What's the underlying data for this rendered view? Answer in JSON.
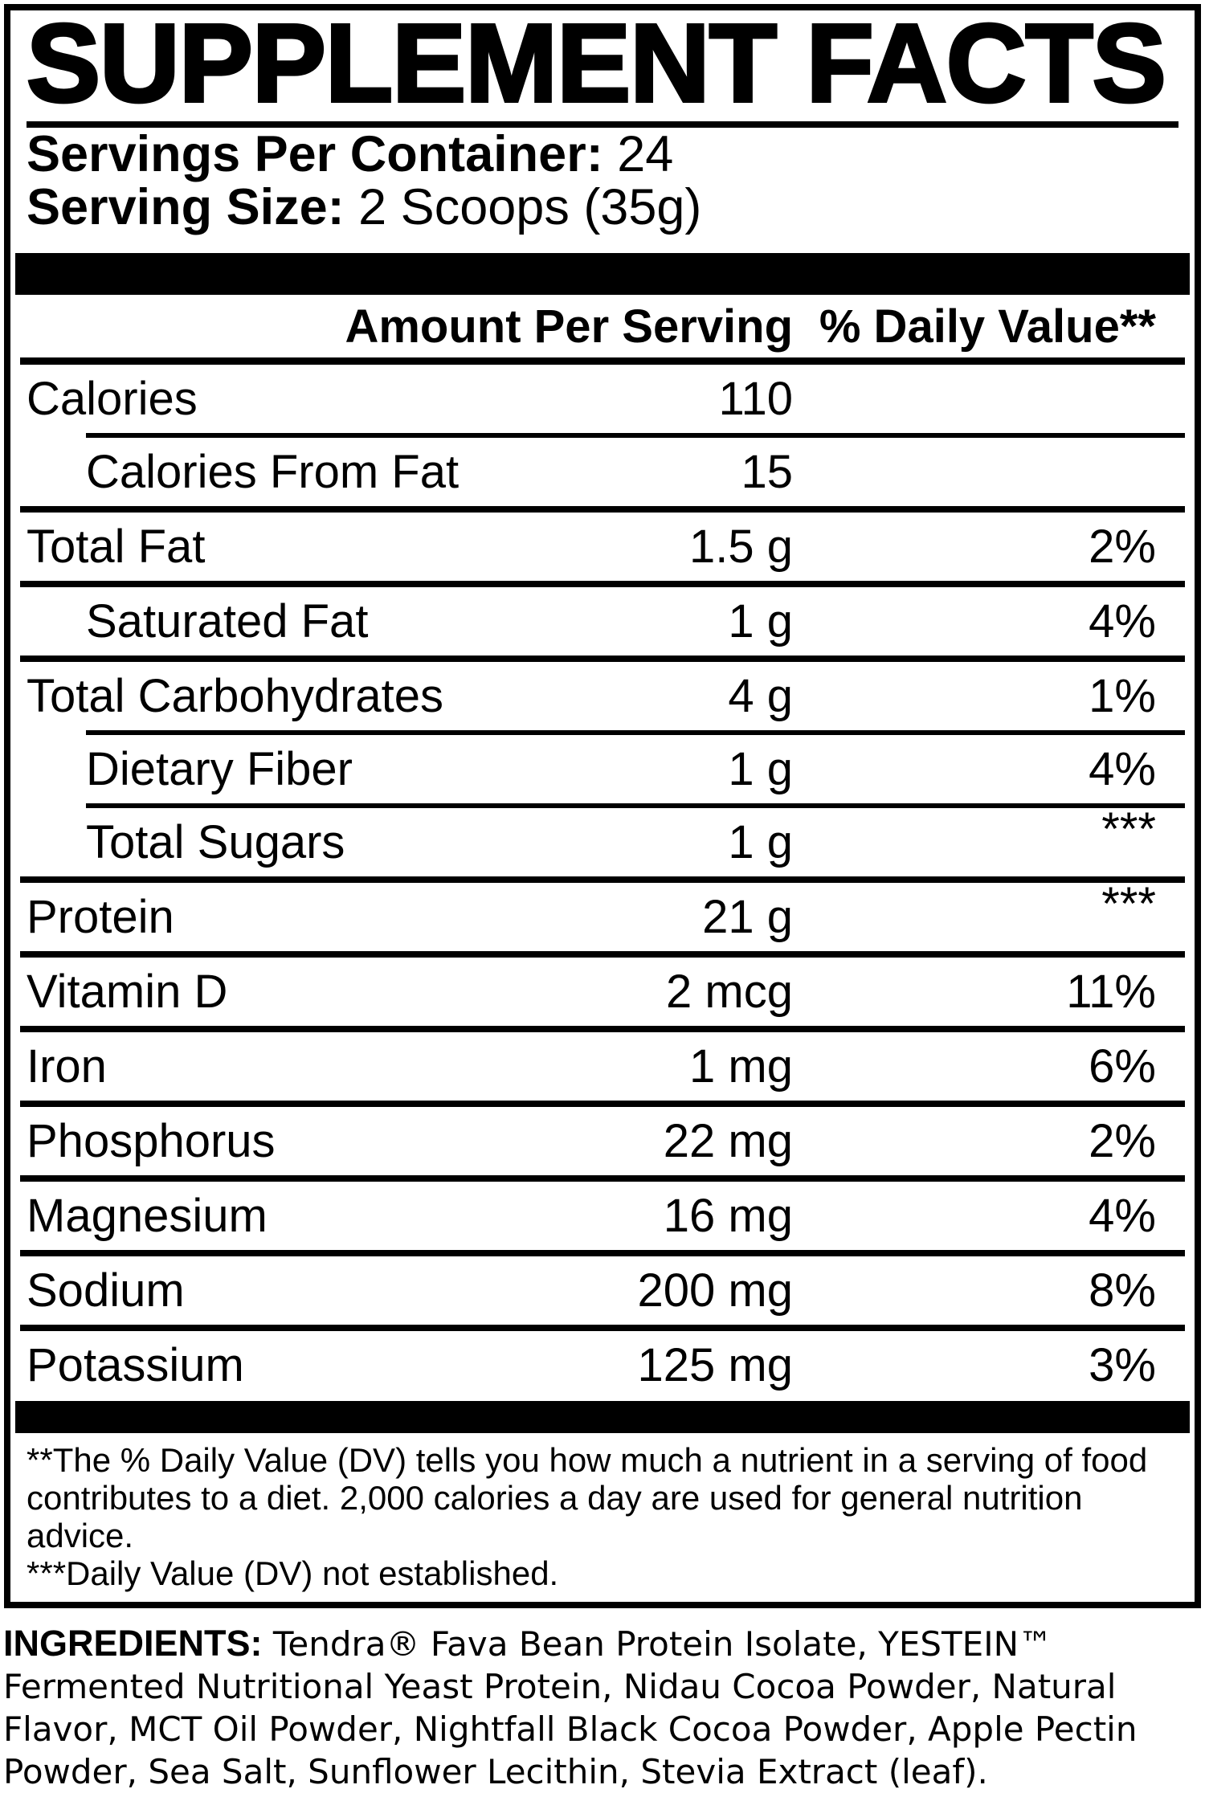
{
  "title": "SUPPLEMENT FACTS",
  "servings": {
    "label": "Servings Per Container:",
    "value": " 24"
  },
  "serving_size": {
    "label": "Serving Size:",
    "value": " 2 Scoops (35g)"
  },
  "table": {
    "amount_header": "Amount Per Serving",
    "dv_header": "% Daily Value**",
    "rows": [
      {
        "name": "Calories",
        "amount": "110",
        "dv": "",
        "indent": false,
        "sep": "head"
      },
      {
        "name": "Calories From Fat",
        "amount": "15",
        "dv": "",
        "indent": true,
        "sep": "indent"
      },
      {
        "name": "Total Fat",
        "amount": "1.5 g",
        "dv": "2%",
        "indent": false,
        "sep": "full"
      },
      {
        "name": "Saturated Fat",
        "amount": "1 g",
        "dv": "4%",
        "indent": true,
        "sep": "full"
      },
      {
        "name": "Total Carbohydrates",
        "amount": "4 g",
        "dv": "1%",
        "indent": false,
        "sep": "full"
      },
      {
        "name": "Dietary Fiber",
        "amount": "1 g",
        "dv": "4%",
        "indent": true,
        "sep": "indent"
      },
      {
        "name": "Total Sugars",
        "amount": "1 g",
        "dv": "***",
        "indent": true,
        "sep": "indent"
      },
      {
        "name": "Protein",
        "amount": "21 g",
        "dv": "***",
        "indent": false,
        "sep": "full"
      },
      {
        "name": "Vitamin D",
        "amount": "2 mcg",
        "dv": "11%",
        "indent": false,
        "sep": "full"
      },
      {
        "name": "Iron",
        "amount": "1 mg",
        "dv": "6%",
        "indent": false,
        "sep": "full"
      },
      {
        "name": "Phosphorus",
        "amount": "22 mg",
        "dv": "2%",
        "indent": false,
        "sep": "full"
      },
      {
        "name": "Magnesium",
        "amount": "16 mg",
        "dv": "4%",
        "indent": false,
        "sep": "full"
      },
      {
        "name": "Sodium",
        "amount": "200 mg",
        "dv": "8%",
        "indent": false,
        "sep": "full"
      },
      {
        "name": "Potassium",
        "amount": "125 mg",
        "dv": "3%",
        "indent": false,
        "sep": "full"
      }
    ]
  },
  "footnotes": {
    "daily_value": "**The % Daily Value (DV) tells you how much a nutrient in a serving of food contributes to a diet. 2,000 calories a day are used for general nutrition advice.",
    "not_established": "***Daily Value (DV) not established."
  },
  "ingredients": {
    "label": "INGREDIENTS:",
    "text": " Tendra® Fava Bean Protein Isolate, YESTEIN™ Fermented Nutritional Yeast Protein, Nidau Cocoa Powder, Natural Flavor, MCT Oil Powder, Nightfall Black Cocoa Powder, Apple Pectin Powder, Sea Salt, Sunflower Lecithin, Stevia Extract (leaf)."
  },
  "colors": {
    "ink": "#000000",
    "paper": "#ffffff"
  }
}
